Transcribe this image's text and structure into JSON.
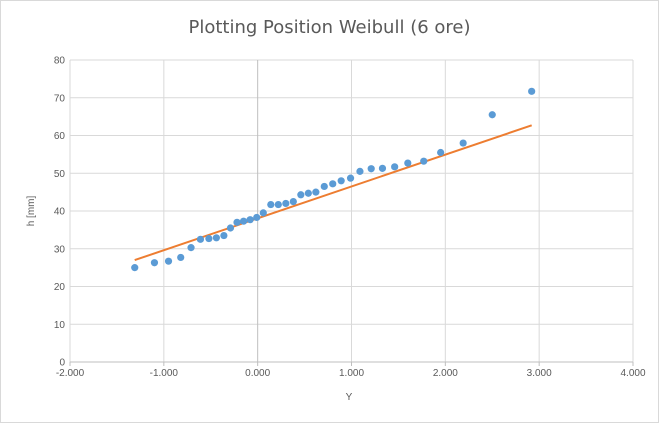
{
  "chart_data": {
    "type": "scatter",
    "title": "Plotting Position Weibull  (6 ore)",
    "xlabel": "Y",
    "ylabel": "h [mm]",
    "xlim": [
      -2.0,
      4.0
    ],
    "ylim": [
      0,
      80
    ],
    "x_ticks": [
      -2.0,
      -1.0,
      0.0,
      1.0,
      2.0,
      3.0,
      4.0
    ],
    "x_tick_labels": [
      "-2.000",
      "-1.000",
      "0.000",
      "1.000",
      "2.000",
      "3.000",
      "4.000"
    ],
    "y_ticks": [
      0,
      10,
      20,
      30,
      40,
      50,
      60,
      70,
      80
    ],
    "y_tick_labels": [
      "0",
      "10",
      "20",
      "30",
      "40",
      "50",
      "60",
      "70",
      "80"
    ],
    "grid": true,
    "legend": "none",
    "series": [
      {
        "type": "scatter",
        "color": "#5b9bd5",
        "x": [
          -1.31,
          -1.1,
          -0.95,
          -0.82,
          -0.71,
          -0.61,
          -0.52,
          -0.44,
          -0.36,
          -0.29,
          -0.22,
          -0.15,
          -0.08,
          -0.01,
          0.06,
          0.14,
          0.22,
          0.3,
          0.38,
          0.46,
          0.54,
          0.62,
          0.71,
          0.8,
          0.89,
          0.99,
          1.09,
          1.21,
          1.33,
          1.46,
          1.6,
          1.77,
          1.95,
          2.19,
          2.5,
          2.92
        ],
        "y": [
          25.0,
          26.3,
          26.7,
          27.7,
          30.3,
          32.5,
          32.7,
          32.9,
          33.5,
          35.5,
          37.0,
          37.3,
          37.7,
          38.3,
          39.5,
          41.7,
          41.7,
          42.0,
          42.5,
          44.3,
          44.7,
          45.0,
          46.5,
          47.2,
          48.0,
          48.7,
          50.5,
          51.2,
          51.3,
          51.7,
          52.7,
          53.2,
          55.5,
          58.0,
          65.5,
          71.7
        ]
      },
      {
        "type": "line",
        "color": "#ed7d31",
        "x": [
          -1.31,
          2.92
        ],
        "y": [
          27.0,
          62.7
        ]
      }
    ]
  }
}
